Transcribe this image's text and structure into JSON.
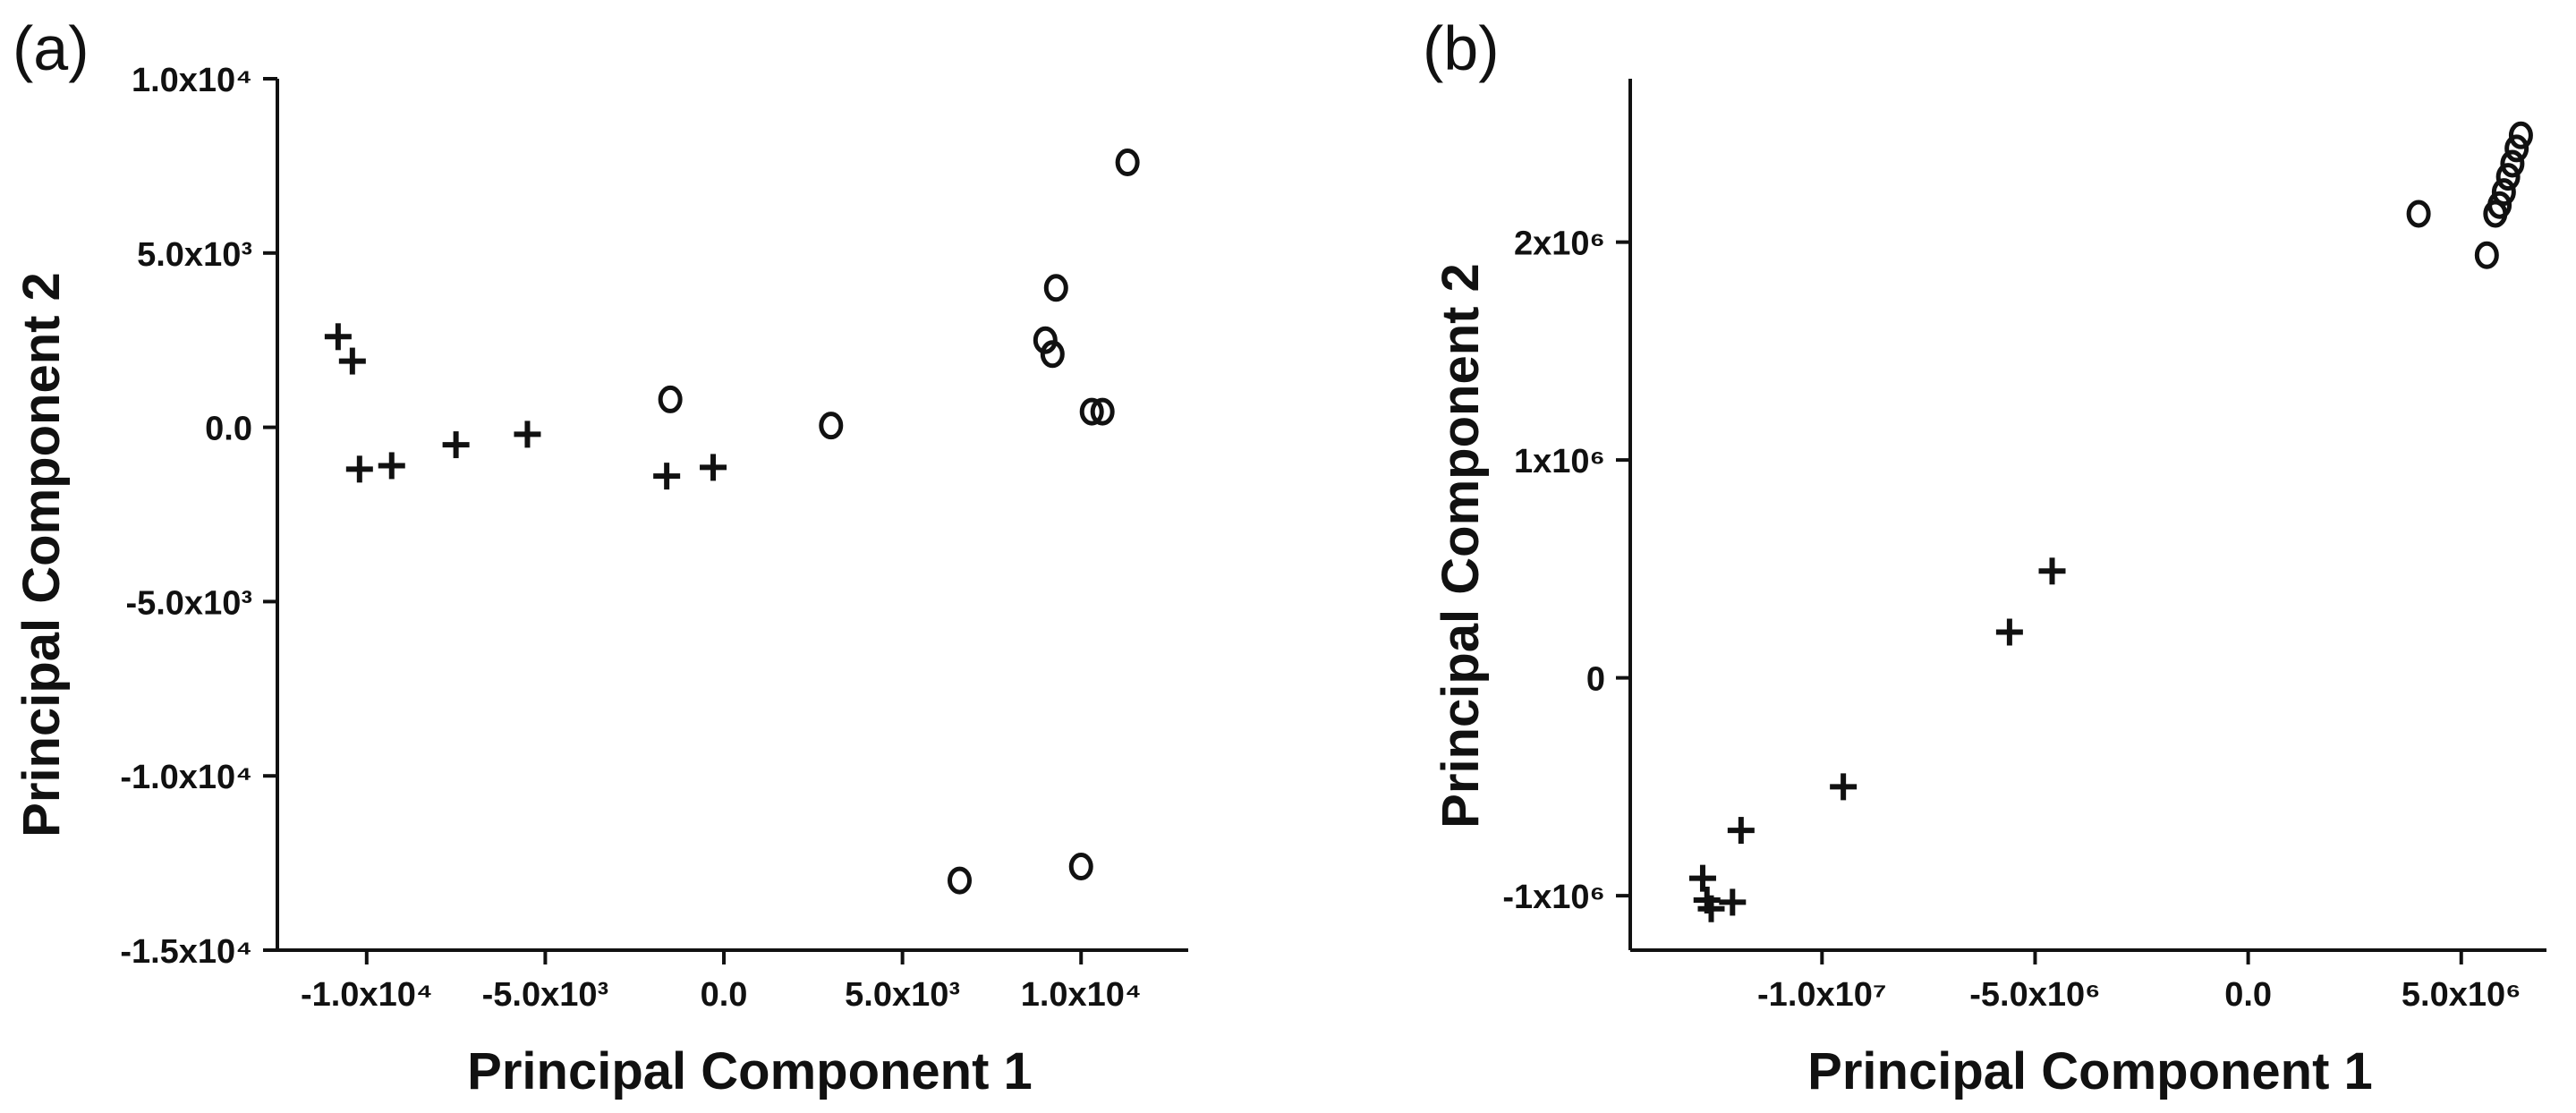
{
  "chart_data": [
    {
      "type": "scatter",
      "panel_label": "(a)",
      "xlabel": "Principal Component 1",
      "ylabel": "Principal Component 2",
      "xlim": [
        -12500,
        13000
      ],
      "ylim": [
        -15000,
        10000
      ],
      "x_ticks": [
        {
          "value": -10000,
          "label": "-1.0x10⁴"
        },
        {
          "value": -5000,
          "label": "-5.0x10³"
        },
        {
          "value": 0,
          "label": "0.0"
        },
        {
          "value": 5000,
          "label": "5.0x10³"
        },
        {
          "value": 10000,
          "label": "1.0x10⁴"
        }
      ],
      "y_ticks": [
        {
          "value": -15000,
          "label": "-1.5x10⁴"
        },
        {
          "value": -10000,
          "label": "-1.0x10⁴"
        },
        {
          "value": -5000,
          "label": "-5.0x10³"
        },
        {
          "value": 0,
          "label": "0.0"
        },
        {
          "value": 5000,
          "label": "5.0x10³"
        },
        {
          "value": 10000,
          "label": "1.0x10⁴"
        }
      ],
      "grid": false,
      "series": [
        {
          "marker": "plus",
          "points": [
            {
              "x": -10800,
              "y": 2600
            },
            {
              "x": -10400,
              "y": 1900
            },
            {
              "x": -10200,
              "y": -1200
            },
            {
              "x": -9300,
              "y": -1100
            },
            {
              "x": -7500,
              "y": -500
            },
            {
              "x": -5500,
              "y": -200
            },
            {
              "x": -1600,
              "y": -1400
            },
            {
              "x": -300,
              "y": -1150
            }
          ]
        },
        {
          "marker": "circle",
          "points": [
            {
              "x": -1500,
              "y": 800
            },
            {
              "x": 3000,
              "y": 50
            },
            {
              "x": 6600,
              "y": -13000
            },
            {
              "x": 9000,
              "y": 2500
            },
            {
              "x": 9200,
              "y": 2100
            },
            {
              "x": 9300,
              "y": 4000
            },
            {
              "x": 10000,
              "y": -12600
            },
            {
              "x": 10300,
              "y": 450
            },
            {
              "x": 10600,
              "y": 450
            },
            {
              "x": 11300,
              "y": 7600
            }
          ]
        }
      ]
    },
    {
      "type": "scatter",
      "panel_label": "(b)",
      "xlabel": "Principal Component 1",
      "ylabel": "Principal Component 2",
      "xlim": [
        -14500000,
        7000000
      ],
      "ylim": [
        -1250000,
        2750000
      ],
      "x_ticks": [
        {
          "value": -10000000,
          "label": "-1.0x10⁷"
        },
        {
          "value": -5000000,
          "label": "-5.0x10⁶"
        },
        {
          "value": 0,
          "label": "0.0"
        },
        {
          "value": 5000000,
          "label": "5.0x10⁶"
        }
      ],
      "y_ticks": [
        {
          "value": -1000000,
          "label": "-1x10⁶"
        },
        {
          "value": 0,
          "label": "0"
        },
        {
          "value": 1000000,
          "label": "1x10⁶"
        },
        {
          "value": 2000000,
          "label": "2x10⁶"
        }
      ],
      "grid": false,
      "series": [
        {
          "marker": "plus",
          "points": [
            {
              "x": -12800000,
              "y": -920000
            },
            {
              "x": -12700000,
              "y": -1020000
            },
            {
              "x": -12600000,
              "y": -1060000
            },
            {
              "x": -12100000,
              "y": -1030000
            },
            {
              "x": -11900000,
              "y": -700000
            },
            {
              "x": -9500000,
              "y": -500000
            },
            {
              "x": -5600000,
              "y": 210000
            },
            {
              "x": -4600000,
              "y": 490000
            }
          ]
        },
        {
          "marker": "circle",
          "points": [
            {
              "x": 4000000,
              "y": 2130000
            },
            {
              "x": 5600000,
              "y": 1940000
            },
            {
              "x": 5800000,
              "y": 2130000
            },
            {
              "x": 5900000,
              "y": 2170000
            },
            {
              "x": 6000000,
              "y": 2230000
            },
            {
              "x": 6100000,
              "y": 2300000
            },
            {
              "x": 6200000,
              "y": 2360000
            },
            {
              "x": 6300000,
              "y": 2430000
            },
            {
              "x": 6400000,
              "y": 2490000
            }
          ]
        }
      ]
    }
  ]
}
